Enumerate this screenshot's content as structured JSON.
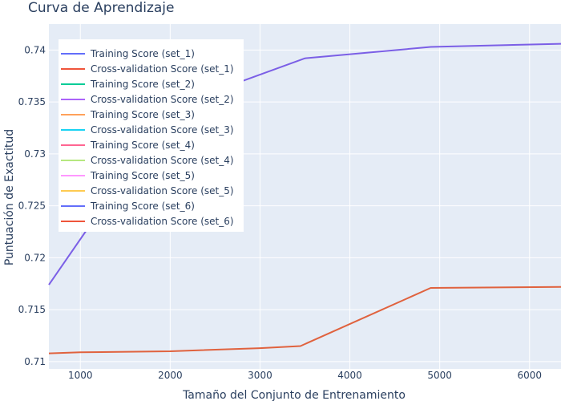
{
  "chart_data": {
    "type": "line",
    "title": "Curva de Aprendizaje",
    "xlabel": "Tamaño del Conjunto de Entrenamiento",
    "ylabel": "Puntuación de Exactitud",
    "xlim": [
      650,
      6350
    ],
    "ylim": [
      0.7093,
      0.7425
    ],
    "x_ticks": [
      1000,
      2000,
      3000,
      4000,
      5000,
      6000
    ],
    "y_ticks": [
      0.71,
      0.715,
      0.72,
      0.725,
      0.73,
      0.735,
      0.74
    ],
    "grid": true,
    "legend_position": "top-left",
    "series": [
      {
        "name": "Training Score (set_1)",
        "color": "#636efa",
        "x": [],
        "y": []
      },
      {
        "name": "Cross-validation Score (set_1)",
        "color": "#EF553B",
        "x": [],
        "y": []
      },
      {
        "name": "Training Score (set_2)",
        "color": "#00cc96",
        "x": [],
        "y": []
      },
      {
        "name": "Cross-validation Score (set_2)",
        "color": "#ab63fa",
        "x": [],
        "y": []
      },
      {
        "name": "Training Score (set_3)",
        "color": "#FFA15A",
        "x": [],
        "y": []
      },
      {
        "name": "Cross-validation Score (set_3)",
        "color": "#19d3f3",
        "x": [],
        "y": []
      },
      {
        "name": "Training Score (set_4)",
        "color": "#FF6692",
        "x": [],
        "y": []
      },
      {
        "name": "Cross-validation Score (set_4)",
        "color": "#B6E880",
        "x": [],
        "y": []
      },
      {
        "name": "Training Score (set_5)",
        "color": "#FF97FF",
        "x": [],
        "y": []
      },
      {
        "name": "Cross-validation Score (set_5)",
        "color": "#FECB52",
        "x": [],
        "y": []
      },
      {
        "name": "Training Score (set_6)",
        "color": "#636efa",
        "x": [
          650,
          1400,
          2100,
          2800,
          3500,
          4900,
          6350
        ],
        "y": [
          0.7174,
          0.7268,
          0.7332,
          0.737,
          0.7392,
          0.7403,
          0.7406
        ]
      },
      {
        "name": "Cross-validation Score (set_6)",
        "color": "#EF553B",
        "x": [
          650,
          1000,
          2000,
          3000,
          3450,
          4900,
          6350
        ],
        "y": [
          0.7108,
          0.7109,
          0.711,
          0.7113,
          0.7115,
          0.7171,
          0.7172
        ]
      }
    ],
    "visible_lines": [
      {
        "color": "#7b5fe6",
        "x": [
          650,
          1400,
          2100,
          2800,
          3500,
          4900,
          6350
        ],
        "y": [
          0.7174,
          0.7268,
          0.7332,
          0.737,
          0.7392,
          0.7403,
          0.7406
        ]
      },
      {
        "color": "#e0623e",
        "x": [
          650,
          1000,
          2000,
          3000,
          3450,
          4900,
          6350
        ],
        "y": [
          0.7108,
          0.7109,
          0.711,
          0.7113,
          0.7115,
          0.7171,
          0.7172
        ]
      }
    ]
  },
  "colors": {
    "plot_bg": "#e5ecf6",
    "grid": "#ffffff",
    "text": "#2a3f5f"
  }
}
